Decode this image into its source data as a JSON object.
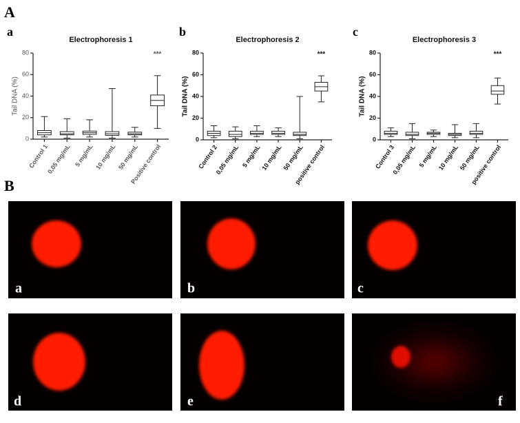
{
  "figure": {
    "panel_a": "A",
    "panel_b": "B"
  },
  "images": [
    {
      "label": "a"
    },
    {
      "label": "b"
    },
    {
      "label": "c"
    },
    {
      "label": "d"
    },
    {
      "label": "e"
    },
    {
      "label": "f"
    }
  ],
  "chart_data": [
    {
      "type": "box",
      "panel_label": "a",
      "title": "Electrophoresis 1",
      "y_label": "Tail DNA (%)",
      "annotation": "***",
      "categories": [
        "Control 1",
        "0,05 mg/mL",
        "5 mg/mL",
        "10 mg/mL",
        "50 mg/mL",
        "Positive control"
      ],
      "boxes": [
        {
          "min": 2,
          "q1": 4,
          "median": 6,
          "q3": 8,
          "max": 21
        },
        {
          "min": 1,
          "q1": 4,
          "median": 5,
          "q3": 7,
          "max": 19
        },
        {
          "min": 2,
          "q1": 4.5,
          "median": 6,
          "q3": 7.5,
          "max": 18
        },
        {
          "min": 1,
          "q1": 3.5,
          "median": 5,
          "q3": 7,
          "max": 47
        },
        {
          "min": 2,
          "q1": 4,
          "median": 5,
          "q3": 6.5,
          "max": 11
        },
        {
          "min": 10,
          "q1": 31,
          "median": 36,
          "q3": 41,
          "max": 59
        }
      ],
      "ylim": [
        0,
        80
      ],
      "yticks": [
        0,
        20,
        40,
        60,
        80
      ]
    },
    {
      "type": "box",
      "panel_label": "b",
      "title": "Electrophoresis 2",
      "y_label": "Tail DNA (%)",
      "annotation": "***",
      "categories": [
        "Control 2",
        "0,05 mg/mL",
        "5 mg/mL",
        "10 mg/mL",
        "50 mg/mL",
        "positive control"
      ],
      "boxes": [
        {
          "min": 2,
          "q1": 4,
          "median": 6,
          "q3": 8,
          "max": 13
        },
        {
          "min": 1,
          "q1": 3,
          "median": 5,
          "q3": 8,
          "max": 12
        },
        {
          "min": 3,
          "q1": 5,
          "median": 6,
          "q3": 8,
          "max": 13
        },
        {
          "min": 3,
          "q1": 5,
          "median": 6,
          "q3": 8,
          "max": 11
        },
        {
          "min": 1,
          "q1": 4,
          "median": 5,
          "q3": 7,
          "max": 40
        },
        {
          "min": 35,
          "q1": 45,
          "median": 49,
          "q3": 53,
          "max": 59
        }
      ],
      "ylim": [
        0,
        80
      ],
      "yticks": [
        0,
        20,
        40,
        60,
        80
      ]
    },
    {
      "type": "box",
      "panel_label": "c",
      "title": "Electrophoresis 3",
      "y_label": "Tail DNA (%)",
      "annotation": "***",
      "categories": [
        "Control 3",
        "0,05 mg/mL",
        "5 mg/mL",
        "10 mg/mL",
        "50 mg/mL",
        "positive control"
      ],
      "boxes": [
        {
          "min": 3,
          "q1": 5,
          "median": 6,
          "q3": 8,
          "max": 11
        },
        {
          "min": 1,
          "q1": 4,
          "median": 5,
          "q3": 7,
          "max": 15
        },
        {
          "min": 3,
          "q1": 5,
          "median": 6,
          "q3": 7,
          "max": 9
        },
        {
          "min": 2,
          "q1": 4,
          "median": 5,
          "q3": 6,
          "max": 14
        },
        {
          "min": 2,
          "q1": 5,
          "median": 6,
          "q3": 8,
          "max": 15
        },
        {
          "min": 33,
          "q1": 42,
          "median": 45,
          "q3": 50,
          "max": 57
        }
      ],
      "ylim": [
        0,
        80
      ],
      "yticks": [
        0,
        20,
        40,
        60,
        80
      ]
    }
  ]
}
